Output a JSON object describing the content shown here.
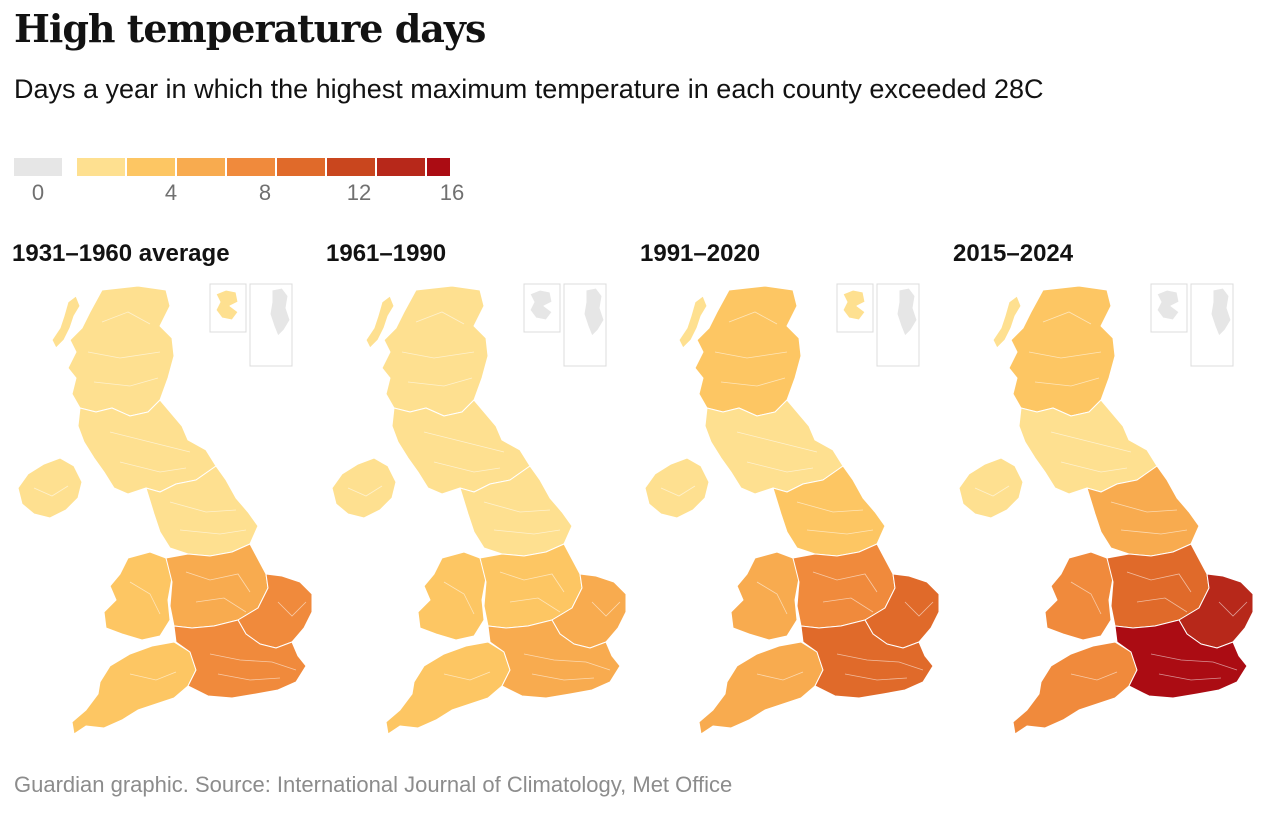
{
  "title": "High temperature days",
  "subtitle": "Days a year in which the highest maximum temperature in each county exceeded 28C",
  "legend": {
    "zero_color": "#e6e6e6",
    "colors": [
      "#fee090",
      "#fdc663",
      "#f8ab4f",
      "#f08a3c",
      "#e06a2a",
      "#c9461e",
      "#b7281a",
      "#ab0c13"
    ],
    "tick_labels": [
      "0",
      "4",
      "8",
      "12",
      "16"
    ],
    "tick_values": [
      0,
      4,
      8,
      12,
      16
    ],
    "bin_edges": [
      1,
      3,
      5,
      7,
      9,
      11,
      13,
      15,
      16
    ]
  },
  "panels": [
    {
      "label": "1931–1960 average"
    },
    {
      "label": "1961–1990"
    },
    {
      "label": "1991–2020"
    },
    {
      "label": "2015–2024"
    }
  ],
  "map_regions": [
    "shetland",
    "orkney",
    "outer-hebrides",
    "north-scotland",
    "south-scotland",
    "northern-ireland",
    "north-england",
    "wales",
    "midlands",
    "east-england",
    "south-west",
    "south-east"
  ],
  "region_days": [
    {
      "shetland": 0,
      "orkney": 2,
      "outer-hebrides": 1.5,
      "north-scotland": 1.5,
      "south-scotland": 1.5,
      "northern-ireland": 1.5,
      "north-england": 2.5,
      "wales": 4.5,
      "midlands": 5,
      "east-england": 7,
      "south-west": 4.5,
      "south-east": 7
    },
    {
      "shetland": 0,
      "orkney": 0,
      "outer-hebrides": 1.5,
      "north-scotland": 1.5,
      "south-scotland": 1.5,
      "northern-ireland": 1.5,
      "north-england": 2,
      "wales": 3.5,
      "midlands": 4,
      "east-england": 5,
      "south-west": 4,
      "south-east": 5.5
    },
    {
      "shetland": 0,
      "orkney": 1.5,
      "outer-hebrides": 1.5,
      "north-scotland": 3,
      "south-scotland": 2,
      "northern-ireland": 2,
      "north-england": 4.5,
      "wales": 5.5,
      "midlands": 7,
      "east-england": 10,
      "south-west": 5.5,
      "south-east": 10
    },
    {
      "shetland": 0,
      "orkney": 0,
      "outer-hebrides": 1.5,
      "north-scotland": 4,
      "south-scotland": 2.5,
      "northern-ireland": 2,
      "north-england": 5,
      "wales": 7,
      "midlands": 9,
      "east-england": 13,
      "south-west": 7.5,
      "south-east": 15
    }
  ],
  "source": "Guardian graphic. Source: International Journal of Climatology, Met Office"
}
